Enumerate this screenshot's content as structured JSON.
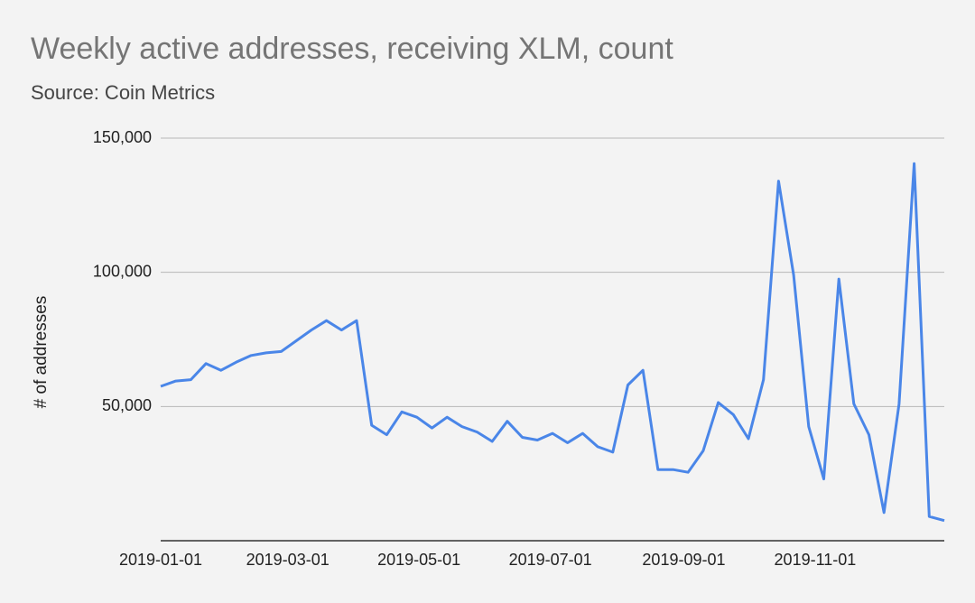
{
  "chart_data": {
    "type": "line",
    "title": "Weekly active addresses, receiving XLM, count",
    "subtitle": "Source: Coin Metrics",
    "y_label": "# of addresses",
    "x": [
      "2019-01-01",
      "2019-01-08",
      "2019-01-15",
      "2019-01-22",
      "2019-01-29",
      "2019-02-05",
      "2019-02-12",
      "2019-02-19",
      "2019-02-26",
      "2019-03-05",
      "2019-03-12",
      "2019-03-19",
      "2019-03-26",
      "2019-04-02",
      "2019-04-09",
      "2019-04-16",
      "2019-04-23",
      "2019-04-30",
      "2019-05-07",
      "2019-05-14",
      "2019-05-21",
      "2019-05-28",
      "2019-06-04",
      "2019-06-11",
      "2019-06-18",
      "2019-06-25",
      "2019-07-02",
      "2019-07-09",
      "2019-07-16",
      "2019-07-23",
      "2019-07-30",
      "2019-08-06",
      "2019-08-13",
      "2019-08-20",
      "2019-08-27",
      "2019-09-03",
      "2019-09-10",
      "2019-09-17",
      "2019-09-24",
      "2019-10-01",
      "2019-10-08",
      "2019-10-15",
      "2019-10-22",
      "2019-10-29",
      "2019-11-05",
      "2019-11-12",
      "2019-11-19",
      "2019-11-26",
      "2019-12-03",
      "2019-12-10",
      "2019-12-17",
      "2019-12-24",
      "2019-12-31"
    ],
    "values": [
      57500,
      59500,
      60000,
      66000,
      63500,
      66500,
      69000,
      70000,
      70500,
      74500,
      78500,
      82000,
      78500,
      82000,
      43000,
      39500,
      48000,
      46000,
      42000,
      46000,
      42500,
      40500,
      37000,
      44500,
      38500,
      37500,
      40000,
      36500,
      40000,
      35000,
      33000,
      58000,
      63500,
      26500,
      26500,
      25500,
      33500,
      51500,
      47000,
      38000,
      60000,
      134000,
      99000,
      42500,
      23000,
      97500,
      51000,
      39500,
      10500,
      51000,
      140500,
      9000,
      7500
    ],
    "color": "#4a86e8",
    "xlim": [
      "2019-01-01",
      "2019-12-31"
    ],
    "xticks": [
      "2019-01-01",
      "2019-03-01",
      "2019-05-01",
      "2019-07-01",
      "2019-09-01",
      "2019-11-01"
    ],
    "ylim": [
      0,
      150000
    ],
    "yticks": [
      {
        "value": 50000,
        "label": "50,000"
      },
      {
        "value": 100000,
        "label": "100,000"
      },
      {
        "value": 150000,
        "label": "150,000"
      }
    ],
    "grid": true
  }
}
